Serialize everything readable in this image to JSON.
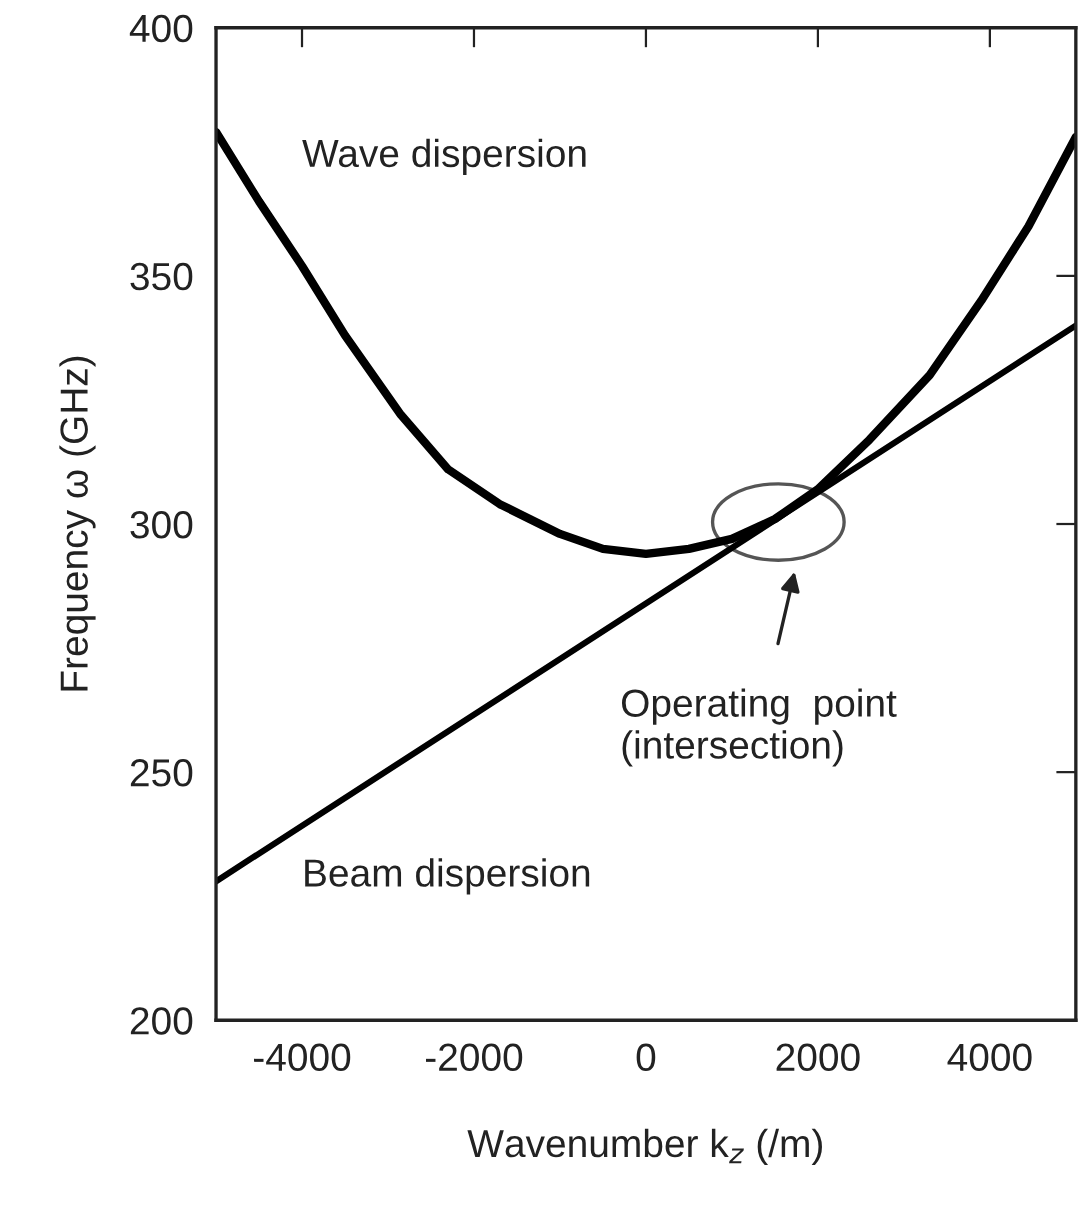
{
  "chart_data": {
    "type": "line",
    "xlabel": "Wavenumber k$_{z}$ (/m)",
    "ylabel": "Frequency ω (GHz)",
    "series": [
      {
        "name": "Wave dispersion",
        "color": "#000000",
        "x": [
          -5000,
          -4500,
          -4000,
          -3500,
          -2850,
          -2300,
          -1700,
          -1000,
          -500,
          0,
          500,
          1000,
          1500,
          2000,
          2600,
          3300,
          3900,
          4450,
          5000
        ],
        "values": [
          379,
          365,
          352,
          338,
          322,
          311,
          304,
          298,
          295,
          294,
          295,
          297,
          301,
          307,
          317,
          330,
          345,
          360,
          378
        ]
      },
      {
        "name": "Beam dispersion",
        "color": "#000000",
        "x": [
          -5000,
          5000
        ],
        "values": [
          228,
          340
        ]
      }
    ],
    "annotations": [
      "Operating  point\n(intersection)"
    ],
    "xlim": [
      -5000,
      5000
    ],
    "ylim": [
      200,
      400
    ],
    "xticks": [
      -4000,
      -2000,
      0,
      2000,
      4000
    ],
    "yticks": [
      200,
      250,
      300,
      350,
      400
    ],
    "grid": false,
    "legend": false,
    "marker": "none",
    "line_style": "solid"
  }
}
